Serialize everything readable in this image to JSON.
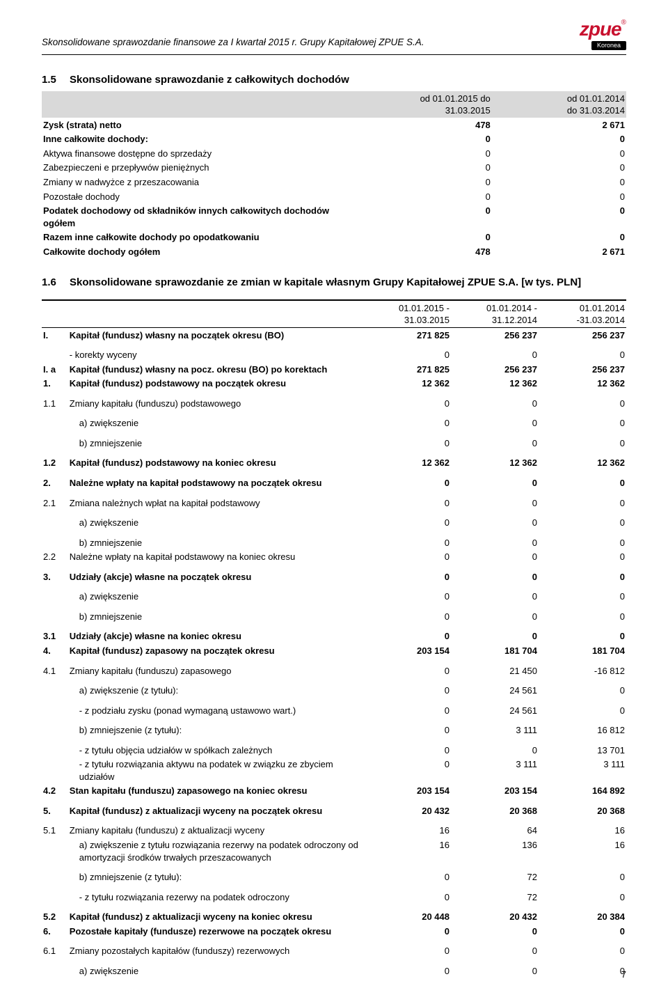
{
  "header": {
    "title": "Skonsolidowane sprawozdanie finansowe za I kwartał 2015 r. Grupy Kapitałowej ZPUE S.A.",
    "logo_main": "zpue",
    "logo_reg": "®",
    "logo_sub": "Koronea"
  },
  "section15": {
    "num": "1.5",
    "title": "Skonsolidowane sprawozdanie z całkowitych dochodów",
    "col1": "od 01.01.2015 do 31.03.2015",
    "col1a": "od 01.01.2015 do",
    "col1b": "31.03.2015",
    "col2a": "od 01.01.2014",
    "col2b": "do 31.03.2014",
    "rows": [
      {
        "label": "Zysk (strata) netto",
        "v1": "478",
        "v2": "2 671",
        "bold": true
      },
      {
        "label": "Inne całkowite dochody:",
        "v1": "0",
        "v2": "0",
        "bold": true
      },
      {
        "label": "Aktywa finansowe dostępne do sprzedaży",
        "v1": "0",
        "v2": "0"
      },
      {
        "label": "Zabezpieczeni e przepływów pieniężnych",
        "v1": "0",
        "v2": "0"
      },
      {
        "label": "Zmiany w nadwyżce z przeszacowania",
        "v1": "0",
        "v2": "0"
      },
      {
        "label": "Pozostałe dochody",
        "v1": "0",
        "v2": "0"
      },
      {
        "label": "Podatek dochodowy od składników innych całkowitych dochodów ogółem",
        "v1": "0",
        "v2": "0",
        "bold": true
      },
      {
        "label": "Razem inne całkowite dochody po opodatkowaniu",
        "v1": "0",
        "v2": "0",
        "bold": true
      },
      {
        "label": "Całkowite dochody ogółem",
        "v1": "478",
        "v2": "2 671",
        "bold": true
      }
    ]
  },
  "section16": {
    "num": "1.6",
    "title": "Skonsolidowane sprawozdanie ze zmian w kapitale własnym Grupy Kapitałowej ZPUE S.A. [w tys. PLN]",
    "h1a": "01.01.2015 -",
    "h1b": "31.03.2015",
    "h2a": "01.01.2014 -",
    "h2b": "31.12.2014",
    "h3a": "01.01.2014",
    "h3b": "-31.03.2014",
    "rows": [
      {
        "n": "I.",
        "l": "Kapitał (fundusz) własny na początek okresu (BO)",
        "v1": "271 825",
        "v2": "256 237",
        "v3": "256 237",
        "bold": true,
        "gap": true
      },
      {
        "n": "",
        "l": "- korekty wyceny",
        "v1": "0",
        "v2": "0",
        "v3": "0"
      },
      {
        "n": "I. a",
        "l": "Kapitał (fundusz) własny na pocz. okresu  (BO) po korektach",
        "v1": "271 825",
        "v2": "256 237",
        "v3": "256 237",
        "bold": true
      },
      {
        "n": "1.",
        "l": "Kapitał (fundusz) podstawowy na początek okresu",
        "v1": "12 362",
        "v2": "12 362",
        "v3": "12 362",
        "bold": true,
        "gap": true
      },
      {
        "n": "1.1",
        "l": "Zmiany kapitału (funduszu) podstawowego",
        "v1": "0",
        "v2": "0",
        "v3": "0",
        "gap": true
      },
      {
        "n": "",
        "l": "a) zwiększenie",
        "v1": "0",
        "v2": "0",
        "v3": "0",
        "indent": true,
        "gap": true
      },
      {
        "n": "",
        "l": "b) zmniejszenie",
        "v1": "0",
        "v2": "0",
        "v3": "0",
        "indent": true,
        "gap": true
      },
      {
        "n": "1.2",
        "l": "Kapitał (fundusz) podstawowy na koniec okresu",
        "v1": "12 362",
        "v2": "12 362",
        "v3": "12 362",
        "bold": true,
        "gap": true
      },
      {
        "n": "2.",
        "l": "Należne wpłaty na kapitał podstawowy na początek okresu",
        "v1": "0",
        "v2": "0",
        "v3": "0",
        "bold": true,
        "gap": true
      },
      {
        "n": "2.1",
        "l": "Zmiana należnych wpłat na kapitał podstawowy",
        "v1": "0",
        "v2": "0",
        "v3": "0",
        "gap": true
      },
      {
        "n": "",
        "l": "a) zwiększenie",
        "v1": "0",
        "v2": "0",
        "v3": "0",
        "indent": true,
        "gap": true
      },
      {
        "n": "",
        "l": "b) zmniejszenie",
        "v1": "0",
        "v2": "0",
        "v3": "0",
        "indent": true
      },
      {
        "n": "2.2",
        "l": "Należne wpłaty na kapitał podstawowy na koniec okresu",
        "v1": "0",
        "v2": "0",
        "v3": "0",
        "gap": true
      },
      {
        "n": "3.",
        "l": "Udziały (akcje) własne na początek okresu",
        "v1": "0",
        "v2": "0",
        "v3": "0",
        "bold": true,
        "gap": true
      },
      {
        "n": "",
        "l": "a) zwiększenie",
        "v1": "0",
        "v2": "0",
        "v3": "0",
        "indent": true,
        "gap": true
      },
      {
        "n": "",
        "l": "b) zmniejszenie",
        "v1": "0",
        "v2": "0",
        "v3": "0",
        "indent": true,
        "gap": true
      },
      {
        "n": "3.1",
        "l": "Udziały (akcje) własne na koniec okresu",
        "v1": "0",
        "v2": "0",
        "v3": "0",
        "bold": true
      },
      {
        "n": "4.",
        "l": "Kapitał (fundusz) zapasowy na początek okresu",
        "v1": "203 154",
        "v2": "181 704",
        "v3": "181 704",
        "bold": true,
        "gap": true
      },
      {
        "n": "4.1",
        "l": "Zmiany kapitału (funduszu) zapasowego",
        "v1": "0",
        "v2": "21 450",
        "v3": "-16 812",
        "gap": true
      },
      {
        "n": "",
        "l": "a) zwiększenie (z tytułu):",
        "v1": "0",
        "v2": "24 561",
        "v3": "0",
        "indent": true,
        "gap": true
      },
      {
        "n": "",
        "l": "- z podziału zysku (ponad wymaganą ustawowo wart.)",
        "v1": "0",
        "v2": "24 561",
        "v3": "0",
        "indent": true,
        "gap": true
      },
      {
        "n": "",
        "l": "b) zmniejszenie (z tytułu):",
        "v1": "0",
        "v2": "3 111",
        "v3": "16 812",
        "indent": true,
        "gap": true
      },
      {
        "n": "",
        "l": "- z tytułu objęcia udziałów w spółkach zależnych",
        "v1": "0",
        "v2": "0",
        "v3": "13 701",
        "indent": true
      },
      {
        "n": "",
        "l": "- z tytułu rozwiązania aktywu na podatek w związku ze zbyciem udziałów",
        "v1": "0",
        "v2": "3 111",
        "v3": "3 111",
        "indent": true
      },
      {
        "n": "4.2",
        "l": "Stan kapitału (funduszu) zapasowego na koniec okresu",
        "v1": "203 154",
        "v2": "203 154",
        "v3": "164 892",
        "bold": true,
        "gap": true
      },
      {
        "n": "5.",
        "l": "Kapitał (fundusz) z aktualizacji wyceny na początek okresu",
        "v1": "20 432",
        "v2": "20 368",
        "v3": "20 368",
        "bold": true,
        "gap": true
      },
      {
        "n": "5.1",
        "l": "Zmiany kapitału (funduszu) z aktualizacji wyceny",
        "v1": "16",
        "v2": "64",
        "v3": "16"
      },
      {
        "n": "",
        "l": "a) zwiększenie z tytułu rozwiązania rezerwy na podatek odroczony od amortyzacji środków trwałych przeszacowanych",
        "v1": "16",
        "v2": "136",
        "v3": "16",
        "indent": true,
        "gap": true
      },
      {
        "n": "",
        "l": "b) zmniejszenie (z tytułu):",
        "v1": "0",
        "v2": "72",
        "v3": "0",
        "indent": true,
        "gap": true
      },
      {
        "n": "",
        "l": " - z tytułu rozwiązania rezerwy na podatek odroczony",
        "v1": "0",
        "v2": "72",
        "v3": "0",
        "indent": true,
        "gap": true
      },
      {
        "n": "5.2",
        "l": "Kapitał (fundusz) z aktualizacji wyceny na koniec okresu",
        "v1": "20 448",
        "v2": "20 432",
        "v3": "20 384",
        "bold": true
      },
      {
        "n": "6.",
        "l": "Pozostałe kapitały (fundusze) rezerwowe na początek okresu",
        "v1": "0",
        "v2": "0",
        "v3": "0",
        "bold": true,
        "gap": true
      },
      {
        "n": "6.1",
        "l": "Zmiany pozostałych kapitałów (funduszy) rezerwowych",
        "v1": "0",
        "v2": "0",
        "v3": "0",
        "gap": true
      },
      {
        "n": "",
        "l": "a) zwiększenie",
        "v1": "0",
        "v2": "0",
        "v3": "0",
        "indent": true
      }
    ]
  },
  "page_number": "7"
}
